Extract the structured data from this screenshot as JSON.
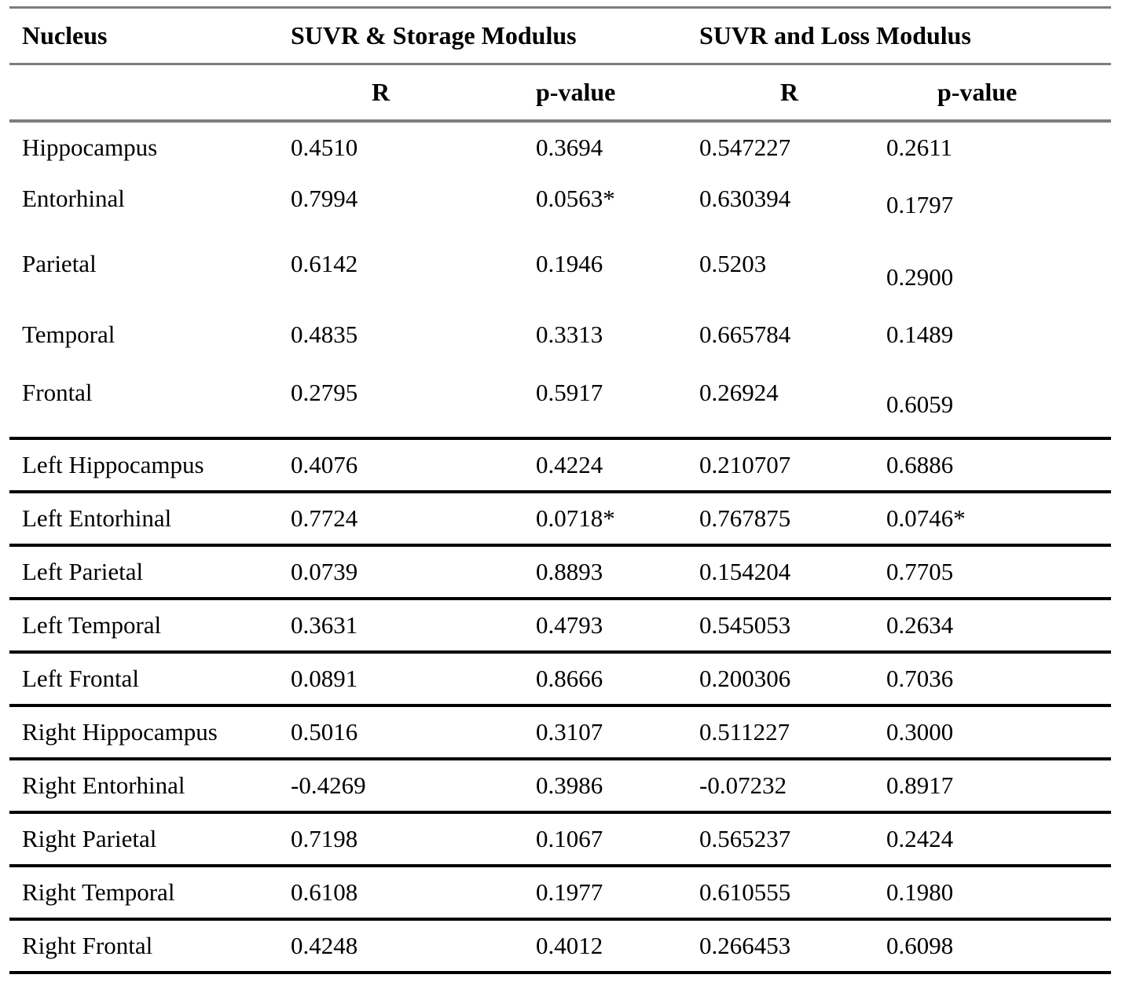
{
  "table": {
    "headers": {
      "nucleus": "Nucleus",
      "group_storage": "SUVR & Storage Modulus",
      "group_loss": "SUVR and Loss Modulus",
      "r": "R",
      "p": "p-value"
    },
    "rows": [
      {
        "name": "Hippocampus",
        "r_storage": "0.4510",
        "p_storage": "0.3694",
        "r_loss": "0.547227",
        "p_loss": "0.2611"
      },
      {
        "name": "Entorhinal",
        "r_storage": "0.7994",
        "p_storage": "0.0563*",
        "r_loss": "0.630394",
        "p_loss": "0.1797"
      },
      {
        "name": "Parietal",
        "r_storage": "0.6142",
        "p_storage": "0.1946",
        "r_loss": "0.5203",
        "p_loss": "0.2900"
      },
      {
        "name": "Temporal",
        "r_storage": "0.4835",
        "p_storage": "0.3313",
        "r_loss": "0.665784",
        "p_loss": "0.1489"
      },
      {
        "name": "Frontal",
        "r_storage": "0.2795",
        "p_storage": "0.5917",
        "r_loss": "0.26924",
        "p_loss": "0.6059"
      },
      {
        "name": "Left Hippocampus",
        "r_storage": "0.4076",
        "p_storage": "0.4224",
        "r_loss": "0.210707",
        "p_loss": "0.6886"
      },
      {
        "name": "Left Entorhinal",
        "r_storage": "0.7724",
        "p_storage": "0.0718*",
        "r_loss": "0.767875",
        "p_loss": "0.0746*"
      },
      {
        "name": "Left Parietal",
        "r_storage": "0.0739",
        "p_storage": "0.8893",
        "r_loss": "0.154204",
        "p_loss": "0.7705"
      },
      {
        "name": "Left Temporal",
        "r_storage": "0.3631",
        "p_storage": "0.4793",
        "r_loss": "0.545053",
        "p_loss": "0.2634"
      },
      {
        "name": "Left Frontal",
        "r_storage": "0.0891",
        "p_storage": "0.8666",
        "r_loss": "0.200306",
        "p_loss": "0.7036"
      },
      {
        "name": "Right Hippocampus",
        "r_storage": "0.5016",
        "p_storage": "0.3107",
        "r_loss": "0.511227",
        "p_loss": "0.3000"
      },
      {
        "name": "Right Entorhinal",
        "r_storage": "-0.4269",
        "p_storage": "0.3986",
        "r_loss": "-0.07232",
        "p_loss": "0.8917"
      },
      {
        "name": "Right Parietal",
        "r_storage": "0.7198",
        "p_storage": "0.1067",
        "r_loss": "0.565237",
        "p_loss": "0.2424"
      },
      {
        "name": "Right Temporal",
        "r_storage": "0.6108",
        "p_storage": "0.1977",
        "r_loss": "0.610555",
        "p_loss": "0.1980"
      },
      {
        "name": "Right Frontal",
        "r_storage": "0.4248",
        "p_storage": "0.4012",
        "r_loss": "0.266453",
        "p_loss": "0.6098"
      }
    ]
  },
  "colors": {
    "rule_gray": "#7d7d7d",
    "rule_black": "#000000",
    "text": "#000000",
    "background": "#ffffff"
  }
}
